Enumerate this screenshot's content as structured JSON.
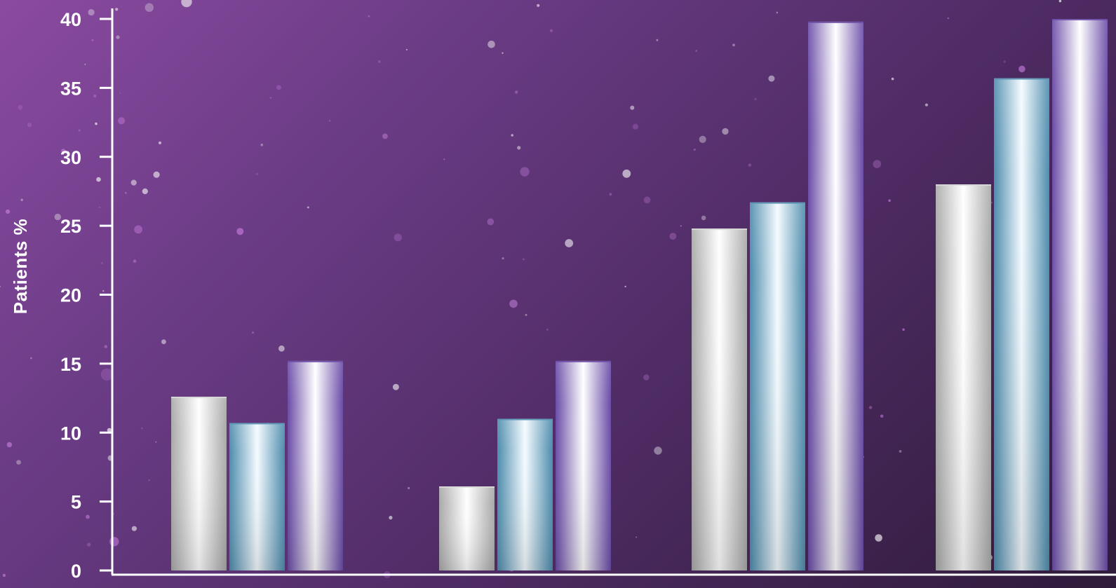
{
  "chart_data": {
    "type": "bar",
    "title": "",
    "xlabel": "",
    "ylabel": "Patients %",
    "ylim": [
      0,
      40
    ],
    "yticks": [
      0,
      5,
      10,
      15,
      20,
      25,
      30,
      35,
      40
    ],
    "categories": [
      "",
      "",
      "",
      ""
    ],
    "grid": false,
    "legend": "none",
    "series": [
      {
        "color": "#d8d8d8",
        "gradient": "silver",
        "values": [
          12.6,
          6.1,
          24.8,
          28.0
        ]
      },
      {
        "color": "#5b95b5",
        "gradient": "teal",
        "values": [
          10.7,
          11.0,
          26.7,
          35.7
        ]
      },
      {
        "color": "#6d4ca6",
        "gradient": "violet",
        "values": [
          15.2,
          15.2,
          39.8,
          40.0
        ]
      }
    ]
  },
  "colors": {
    "background_start": "#8a4aa0",
    "background_end": "#2f1b3a",
    "axis": "#ffffff",
    "text": "#ffffff"
  }
}
